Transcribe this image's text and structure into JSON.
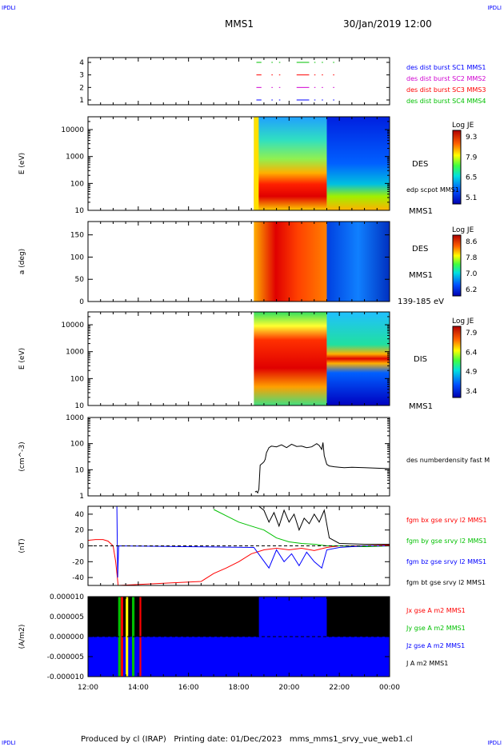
{
  "corners": {
    "tl": "IPDLI",
    "tr": "IPDLI",
    "bl": "IPDLI",
    "br": "IPDLI"
  },
  "header": {
    "mission": "MMS1",
    "date": "30/Jan/2019 12:00"
  },
  "footer": {
    "text": "Produced by cl (IRAP)   Printing date: 01/Dec/2023   mms_mms1_srvy_vue_web1.cl"
  },
  "colors": {
    "black": "#000000",
    "red": "#ff0000",
    "green": "#00c000",
    "blue": "#0000ff",
    "magenta": "#d000d0"
  },
  "chart_data": [
    {
      "id": "status",
      "type": "scatter",
      "yticks": [
        "4",
        "3",
        "2",
        "1"
      ],
      "legend": [
        {
          "text": "des dist burst SC1 MMS1",
          "color": "#0000ff"
        },
        {
          "text": "des dist burst SC2 MMS2",
          "color": "#d000d0"
        },
        {
          "text": "des dist burst SC3 MMS3",
          "color": "#ff0000"
        },
        {
          "text": "des dist burst SC4 MMS4",
          "color": "#00c000"
        }
      ]
    },
    {
      "id": "des_energy",
      "type": "heatmap",
      "ylabel": "E (eV)",
      "yscale": "log",
      "ylim": [
        10,
        30000
      ],
      "yticks": [
        "10000",
        "1000",
        "100",
        "10"
      ],
      "right_labels": [
        "DES",
        "edp scpot MMS1",
        "MMS1"
      ],
      "colorbar": {
        "title": "Log JE",
        "ticks": [
          "9.3",
          "7.9",
          "6.5",
          "5.1"
        ]
      }
    },
    {
      "id": "des_pitch",
      "type": "heatmap",
      "ylabel": "a (deg)",
      "ylim": [
        0,
        180
      ],
      "yticks": [
        "150",
        "100",
        "50",
        "0"
      ],
      "right_labels": [
        "DES",
        "MMS1",
        "139-185 eV"
      ],
      "colorbar": {
        "title": "Log JE",
        "ticks": [
          "8.6",
          "7.8",
          "7.0",
          "6.2"
        ]
      }
    },
    {
      "id": "dis_energy",
      "type": "heatmap",
      "ylabel": "E (eV)",
      "yscale": "log",
      "ylim": [
        10,
        30000
      ],
      "yticks": [
        "10000",
        "1000",
        "100",
        "10"
      ],
      "right_labels": [
        "DIS",
        "MMS1"
      ],
      "colorbar": {
        "title": "Log JE",
        "ticks": [
          "7.9",
          "6.4",
          "4.9",
          "3.4"
        ]
      }
    },
    {
      "id": "density",
      "type": "line",
      "ylabel": "(cm^-3)",
      "yscale": "log",
      "ylim": [
        1,
        1000
      ],
      "yticks": [
        "1000",
        "100",
        "10",
        "1"
      ],
      "legend": [
        {
          "text": "des numberdensity fast M",
          "color": "#000000"
        }
      ],
      "series": [
        {
          "name": "des numberdensity fast M",
          "color": "#000000",
          "x": [
            18.65,
            18.7,
            18.75,
            18.8,
            18.85,
            18.95,
            19.0,
            19.05,
            19.1,
            19.2,
            19.3,
            19.5,
            19.7,
            19.9,
            20.1,
            20.3,
            20.5,
            20.7,
            20.9,
            21.1,
            21.2,
            21.3,
            21.35,
            21.4,
            21.5,
            21.6,
            21.8,
            22.0,
            22.2,
            22.5,
            23.0,
            23.5,
            24.0
          ],
          "y": [
            1.4,
            1.5,
            1.3,
            1.8,
            15,
            18,
            20,
            25,
            45,
            70,
            80,
            75,
            90,
            70,
            95,
            78,
            80,
            70,
            75,
            100,
            85,
            60,
            110,
            35,
            16,
            14,
            13,
            12.5,
            12,
            12.5,
            12,
            11.5,
            11
          ]
        }
      ]
    },
    {
      "id": "bfield",
      "type": "line",
      "ylabel": "(nT)",
      "ylim": [
        -50,
        50
      ],
      "yticks": [
        "40",
        "20",
        "0",
        "-20",
        "-40"
      ],
      "legend": [
        {
          "text": "fgm bx gse srvy l2 MMS1",
          "color": "#ff0000"
        },
        {
          "text": "fgm by gse srvy l2 MMS1",
          "color": "#00c000"
        },
        {
          "text": "fgm bz gse srvy l2 MMS1",
          "color": "#0000ff"
        },
        {
          "text": "fgm bt gse srvy l2 MMS1",
          "color": "#000000"
        }
      ],
      "series": [
        {
          "name": "fgm bx gse srvy l2 MMS1",
          "color": "#ff0000",
          "x": [
            12.0,
            12.3,
            12.6,
            12.8,
            13.0,
            13.1,
            13.2,
            16.5,
            17.0,
            17.5,
            18.0,
            18.5,
            19.0,
            19.5,
            20.0,
            20.5,
            21.0,
            21.5,
            22.0,
            23.0,
            24.0
          ],
          "y": [
            7,
            8,
            8,
            6,
            0,
            -20,
            -50,
            -45,
            -35,
            -28,
            -20,
            -10,
            -5,
            -3,
            -5,
            -3,
            -6,
            -2,
            0,
            0,
            1
          ]
        },
        {
          "name": "fgm by gse srvy l2 MMS1",
          "color": "#00c000",
          "x": [
            17.0,
            17.5,
            18.0,
            18.5,
            19.0,
            19.5,
            20.0,
            20.5,
            21.0,
            21.5,
            22.0,
            23.0,
            24.0
          ],
          "y": [
            46,
            38,
            30,
            25,
            20,
            10,
            5,
            3,
            2,
            0,
            0,
            -1,
            0
          ]
        },
        {
          "name": "fgm bz gse srvy l2 MMS1",
          "color": "#0000ff",
          "x": [
            13.15,
            13.18,
            13.22,
            18.6,
            18.9,
            19.2,
            19.5,
            19.8,
            20.1,
            20.4,
            20.7,
            21.0,
            21.3,
            21.5,
            22.0,
            23.0,
            24.0
          ],
          "y": [
            50,
            -40,
            0,
            -2,
            -15,
            -28,
            -5,
            -20,
            -10,
            -25,
            -8,
            -20,
            -28,
            -5,
            -2,
            0,
            0
          ]
        },
        {
          "name": "fgm bt gse srvy l2 MMS1",
          "color": "#000000",
          "x": [
            18.8,
            19.0,
            19.2,
            19.4,
            19.6,
            19.8,
            20.0,
            20.2,
            20.4,
            20.6,
            20.8,
            21.0,
            21.2,
            21.4,
            21.6,
            22.0,
            23.0,
            24.0
          ],
          "y": [
            50,
            45,
            30,
            42,
            25,
            45,
            30,
            40,
            20,
            35,
            28,
            40,
            30,
            45,
            10,
            3,
            2,
            2
          ]
        }
      ]
    },
    {
      "id": "current",
      "type": "area",
      "ylabel": "(A/m2)",
      "ylim": [
        -1e-05,
        1e-05
      ],
      "yticks": [
        "0.000010",
        "0.000005",
        "0.000000",
        "-0.000005",
        "-0.000010"
      ],
      "legend": [
        {
          "text": "Jx gse A m2 MMS1",
          "color": "#ff0000"
        },
        {
          "text": "Jy gse A m2 MMS1",
          "color": "#00c000"
        },
        {
          "text": "Jz gse A m2 MMS1",
          "color": "#0000ff"
        },
        {
          "text": "J A m2 MMS1",
          "color": "#000000"
        }
      ],
      "xlim": [
        12,
        24
      ],
      "xticks": [
        "12:00",
        "14:00",
        "16:00",
        "18:00",
        "20:00",
        "22:00",
        "00:00"
      ]
    }
  ]
}
